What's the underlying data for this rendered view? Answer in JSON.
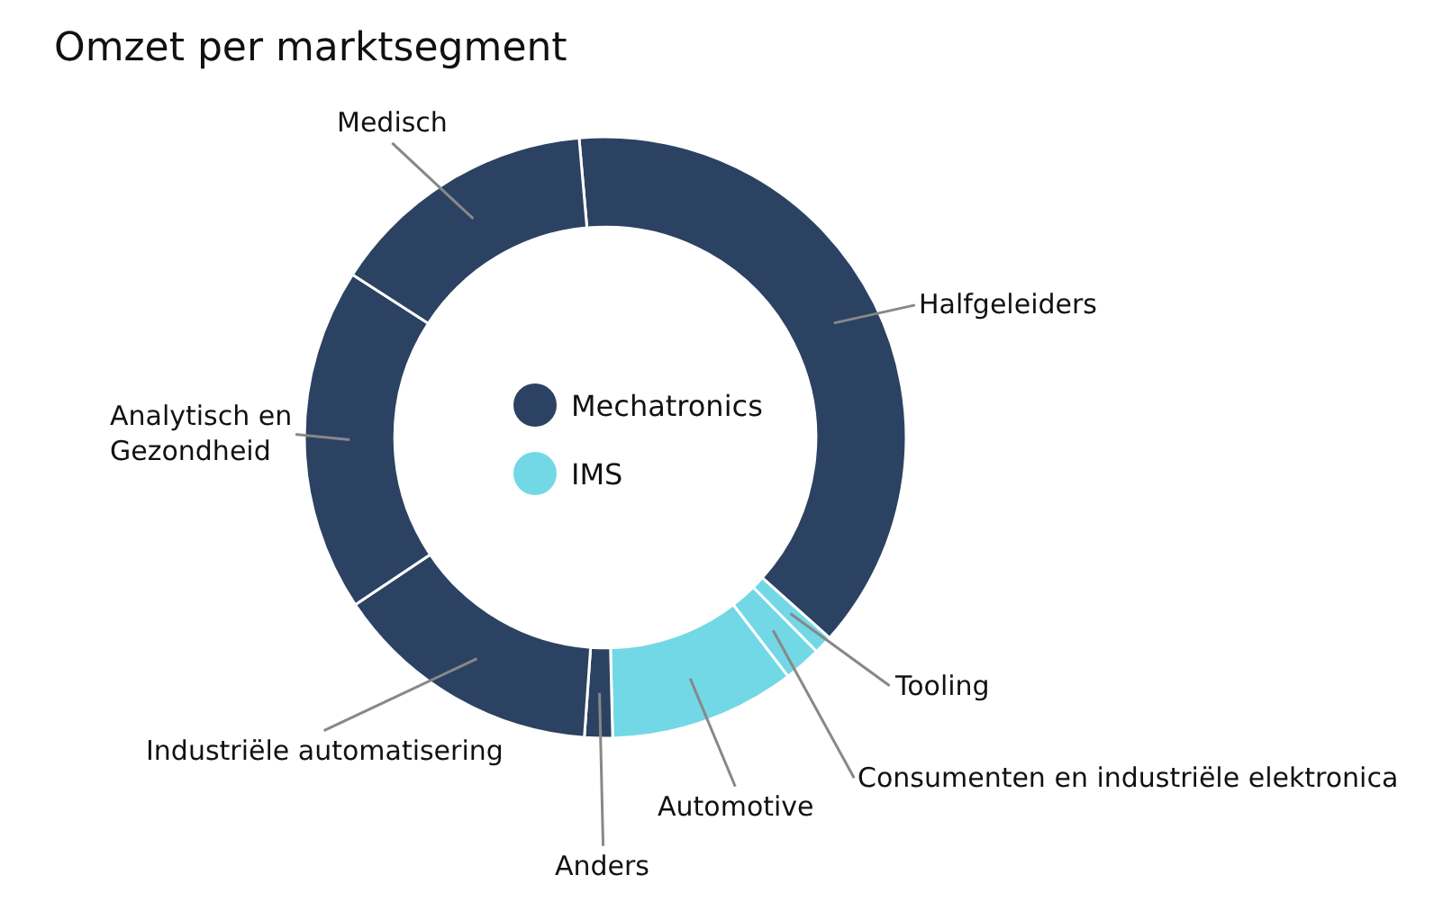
{
  "chart_data": {
    "type": "donut",
    "title": "Omzet per marktsegment",
    "categories": [
      "Halfgeleiders",
      "Tooling",
      "Consumenten en industriële elektronica",
      "Automotive",
      "Anders",
      "Industriële automatisering",
      "Analytisch en\nGezondheid",
      "Medisch"
    ],
    "values": [
      38,
      1,
      2,
      10,
      1.5,
      14.5,
      18.5,
      14.5
    ],
    "colors": [
      "#2b4262",
      "#72d8e6",
      "#72d8e6",
      "#72d8e6",
      "#2b4262",
      "#2b4262",
      "#2b4262",
      "#2b4262"
    ],
    "annotations": [
      "Mechatronics",
      "IMS"
    ]
  }
}
